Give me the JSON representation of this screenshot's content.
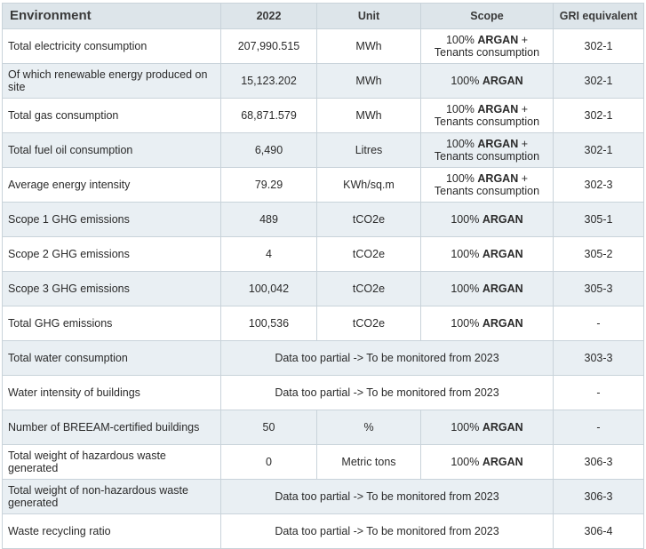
{
  "header": {
    "col1": "Environment",
    "col2": "2022",
    "col3": "Unit",
    "col4": "Scope",
    "col5": "GRI equivalent"
  },
  "rows": [
    {
      "label": "Total electricity consumption",
      "value": "207,990.515",
      "unit": "MWh",
      "scope_prefix": "100%",
      "brand": "ARGAN",
      "scope_suffix": "+",
      "scope_line2": "Tenants consumption",
      "gri": "302-1"
    },
    {
      "label": "Of which renewable energy produced on site",
      "value": "15,123.202",
      "unit": "MWh",
      "scope_prefix": "100%",
      "brand": "ARGAN",
      "gri": "302-1"
    },
    {
      "label": "Total gas consumption",
      "value": "68,871.579",
      "unit": "MWh",
      "scope_prefix": "100%",
      "brand": "ARGAN",
      "scope_suffix": "+",
      "scope_line2": "Tenants consumption",
      "gri": "302-1"
    },
    {
      "label": "Total fuel oil consumption",
      "value": "6,490",
      "unit": "Litres",
      "scope_prefix": "100%",
      "brand": "ARGAN",
      "scope_suffix": "+",
      "scope_line2": "Tenants consumption",
      "gri": "302-1"
    },
    {
      "label": "Average energy intensity",
      "value": "79.29",
      "unit": "KWh/sq.m",
      "scope_prefix": "100%",
      "brand": "ARGAN",
      "scope_suffix": "+",
      "scope_line2": "Tenants consumption",
      "gri": "302-3"
    },
    {
      "label": "Scope 1 GHG emissions",
      "value": "489",
      "unit": "tCO2e",
      "scope_prefix": "100%",
      "brand": "ARGAN",
      "gri": "305-1"
    },
    {
      "label": "Scope 2 GHG emissions",
      "value": "4",
      "unit": "tCO2e",
      "scope_prefix": "100%",
      "brand": "ARGAN",
      "gri": "305-2"
    },
    {
      "label": "Scope 3 GHG emissions",
      "value": "100,042",
      "unit": "tCO2e",
      "scope_prefix": "100%",
      "brand": "ARGAN",
      "gri": "305-3"
    },
    {
      "label": "Total GHG emissions",
      "value": "100,536",
      "unit": "tCO2e",
      "scope_prefix": "100%",
      "brand": "ARGAN",
      "gri": "-"
    },
    {
      "label": "Total water consumption",
      "merged": "Data too partial -> To be monitored from 2023",
      "gri": "303-3"
    },
    {
      "label": "Water intensity of buildings",
      "merged": "Data too partial -> To be monitored from 2023",
      "gri": "-"
    },
    {
      "label": "Number of BREEAM-certified buildings",
      "value": "50",
      "unit": "%",
      "scope_prefix": "100%",
      "brand": "ARGAN",
      "gri": "-"
    },
    {
      "label": "Total weight of hazardous waste generated",
      "value": "0",
      "unit": "Metric tons",
      "scope_prefix": "100%",
      "brand": "ARGAN",
      "gri": "306-3"
    },
    {
      "label": "Total weight of non-hazardous waste generated",
      "merged": "Data too partial -> To be monitored from 2023",
      "gri": "306-3"
    },
    {
      "label": "Waste recycling ratio",
      "merged": "Data too partial -> To be monitored from 2023",
      "gri": "306-4"
    }
  ]
}
